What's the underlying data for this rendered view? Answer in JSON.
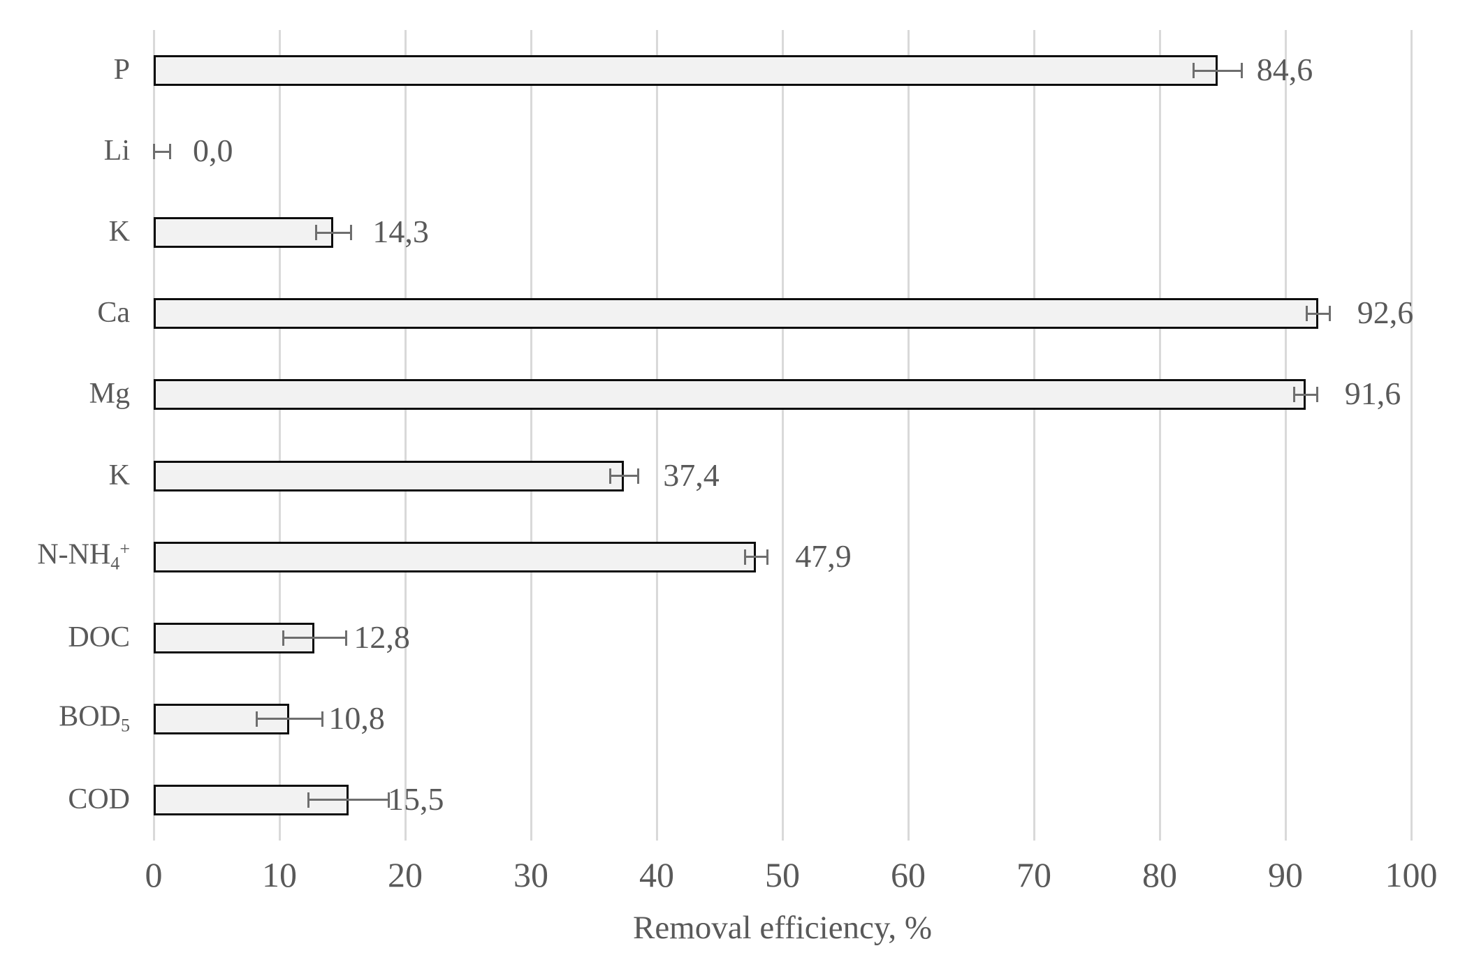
{
  "chart_data": {
    "type": "bar",
    "orientation": "horizontal",
    "title": "",
    "xlabel": "Removal efficiency, %",
    "ylabel": "",
    "xlim": [
      0,
      100
    ],
    "tick_step": 10,
    "tick_labels": [
      "0",
      "10",
      "20",
      "30",
      "40",
      "50",
      "60",
      "70",
      "80",
      "90",
      "100"
    ],
    "grid": "vertical gridlines on",
    "legend": "none",
    "value_label_format": "comma decimal, outside end",
    "error_bars": "horizontal, both directions, with caps",
    "categories": [
      "P",
      "Li",
      "K",
      "Ca",
      "Mg",
      "K",
      "N-NH4+",
      "DOC",
      "BOD5",
      "COD"
    ],
    "bars": [
      {
        "label_parts": [
          {
            "t": "P"
          }
        ],
        "value": 84.6,
        "error": 1.9,
        "value_label": "84,6"
      },
      {
        "label_parts": [
          {
            "t": "Li"
          }
        ],
        "value": 0.0,
        "error": 1.3,
        "value_label": "0,0"
      },
      {
        "label_parts": [
          {
            "t": "K"
          }
        ],
        "value": 14.3,
        "error": 1.4,
        "value_label": "14,3"
      },
      {
        "label_parts": [
          {
            "t": "Ca"
          }
        ],
        "value": 92.6,
        "error": 0.9,
        "value_label": "92,6"
      },
      {
        "label_parts": [
          {
            "t": "Mg"
          }
        ],
        "value": 91.6,
        "error": 0.9,
        "value_label": "91,6"
      },
      {
        "label_parts": [
          {
            "t": "K"
          }
        ],
        "value": 37.4,
        "error": 1.1,
        "value_label": "37,4"
      },
      {
        "label_parts": [
          {
            "t": "N-NH"
          },
          {
            "t": "4",
            "pos": "sub"
          },
          {
            "t": "+",
            "pos": "sup"
          }
        ],
        "value": 47.9,
        "error": 0.9,
        "value_label": "47,9"
      },
      {
        "label_parts": [
          {
            "t": "DOC"
          }
        ],
        "value": 12.8,
        "error": 2.5,
        "value_label": "12,8"
      },
      {
        "label_parts": [
          {
            "t": "BOD"
          },
          {
            "t": "5",
            "pos": "sub"
          }
        ],
        "value": 10.8,
        "error": 2.6,
        "value_label": "10,8"
      },
      {
        "label_parts": [
          {
            "t": "COD"
          }
        ],
        "value": 15.5,
        "error": 3.2,
        "value_label": "15,5"
      }
    ],
    "colors": {
      "bar_fill": "#f2f2f2",
      "bar_border": "#0d0d0d",
      "gridline": "#d9d9d9",
      "error_bar": "#6e6e6e",
      "text": "#595959",
      "background": "#ffffff"
    }
  }
}
